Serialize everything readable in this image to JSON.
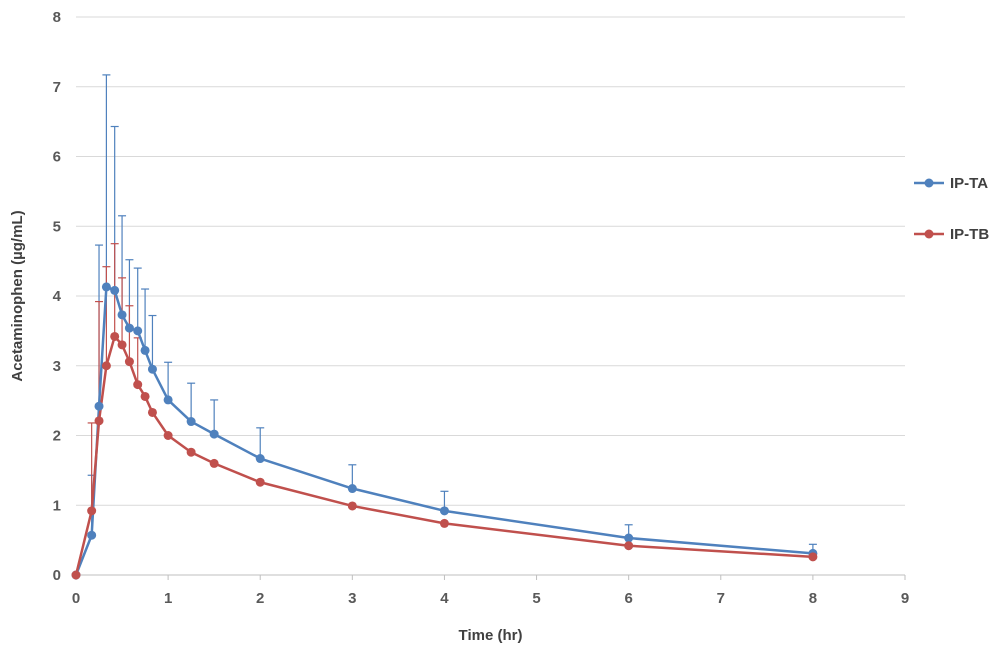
{
  "chart_data": {
    "type": "line",
    "xlabel": "Time (hr)",
    "ylabel": "Acetaminophen (µg/mL)",
    "xlim": [
      0,
      9
    ],
    "ylim": [
      0,
      8
    ],
    "xticks": [
      "0",
      "1",
      "2",
      "3",
      "4",
      "5",
      "6",
      "7",
      "8",
      "9"
    ],
    "yticks": [
      "0",
      "1",
      "2",
      "3",
      "4",
      "5",
      "6",
      "7",
      "8"
    ],
    "grid": "horizontal",
    "legend_position": "right",
    "x": [
      0,
      0.17,
      0.25,
      0.33,
      0.42,
      0.5,
      0.58,
      0.67,
      0.75,
      0.83,
      1,
      1.25,
      1.5,
      2,
      3,
      4,
      6,
      8
    ],
    "series": [
      {
        "name": "IP-TA",
        "color": "#4F81BD",
        "values": [
          0,
          0.57,
          2.42,
          4.13,
          4.08,
          3.73,
          3.54,
          3.5,
          3.22,
          2.95,
          2.51,
          2.2,
          2.02,
          1.67,
          1.24,
          0.92,
          0.53,
          0.31
        ],
        "error_upper": [
          null,
          1.43,
          4.73,
          7.17,
          6.43,
          5.15,
          4.52,
          4.4,
          4.1,
          3.72,
          3.05,
          2.75,
          2.51,
          2.11,
          1.58,
          1.2,
          0.72,
          0.44
        ]
      },
      {
        "name": "IP-TB",
        "color": "#C0504D",
        "values": [
          0,
          0.92,
          2.21,
          3.0,
          3.42,
          3.3,
          3.06,
          2.73,
          2.56,
          2.33,
          2.0,
          1.76,
          1.6,
          1.33,
          0.99,
          0.74,
          0.42,
          0.26
        ],
        "error_upper": [
          null,
          2.18,
          3.92,
          4.42,
          4.75,
          4.26,
          3.86,
          3.4,
          null,
          null,
          null,
          null,
          null,
          null,
          null,
          null,
          null,
          null
        ]
      }
    ]
  }
}
